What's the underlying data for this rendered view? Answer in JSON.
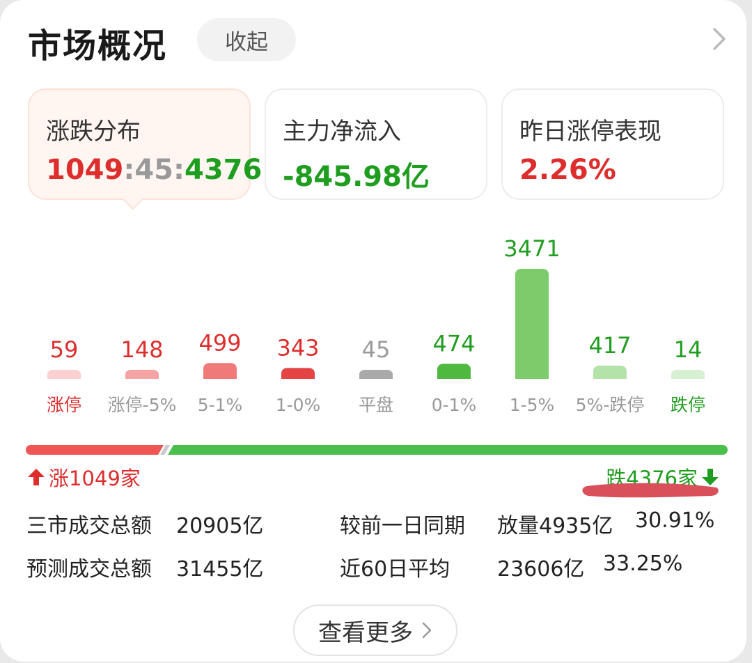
{
  "header": {
    "title": "市场概况",
    "collapse_label": "收起"
  },
  "stats": [
    {
      "label": "涨跌分布",
      "up": "1049",
      "sep1": ":",
      "flat": "45",
      "sep2": ":",
      "down": "4376"
    },
    {
      "label": "主力净流入",
      "value": "-845.98亿"
    },
    {
      "label": "昨日涨停表现",
      "value": "2.26%"
    }
  ],
  "chart_data": {
    "type": "bar",
    "categories": [
      "涨停",
      "涨停-5%",
      "5-1%",
      "1-0%",
      "平盘",
      "0-1%",
      "1-5%",
      "5%-跌停",
      "跌停"
    ],
    "values": [
      59,
      148,
      499,
      343,
      45,
      474,
      3471,
      417,
      14
    ],
    "colors": [
      "#fbd0d0",
      "#f5a3a3",
      "#f07a7a",
      "#e44444",
      "#a9a9a9",
      "#4fb83f",
      "#7ccc6c",
      "#b4e3aa",
      "#d8f0d2"
    ],
    "value_colors": [
      "#dd2d2d",
      "#dd2d2d",
      "#dd2d2d",
      "#dd2d2d",
      "#999999",
      "#1f9d1f",
      "#1f9d1f",
      "#1f9d1f",
      "#1f9d1f"
    ],
    "label_colors": [
      "#dd2d2d",
      "#999999",
      "#999999",
      "#999999",
      "#999999",
      "#999999",
      "#999999",
      "#999999",
      "#1f9d1f"
    ]
  },
  "distribution": {
    "up_count": 1049,
    "flat_count": 45,
    "down_count": 4376,
    "up_label": "涨1049家",
    "down_label": "跌4376家",
    "up_color": "#f05555",
    "down_color": "#4bbf4b"
  },
  "turnover": {
    "total_label": "三市成交总额",
    "total_value": "20905亿",
    "compare_label": "较前一日同期",
    "compare_value": "放量4935亿",
    "compare_pct": "30.91%",
    "forecast_label": "预测成交总额",
    "forecast_value": "31455亿",
    "avg_label": "近60日平均",
    "avg_value": "23606亿",
    "avg_pct": "33.25%"
  },
  "footer": {
    "more_label": "查看更多"
  }
}
